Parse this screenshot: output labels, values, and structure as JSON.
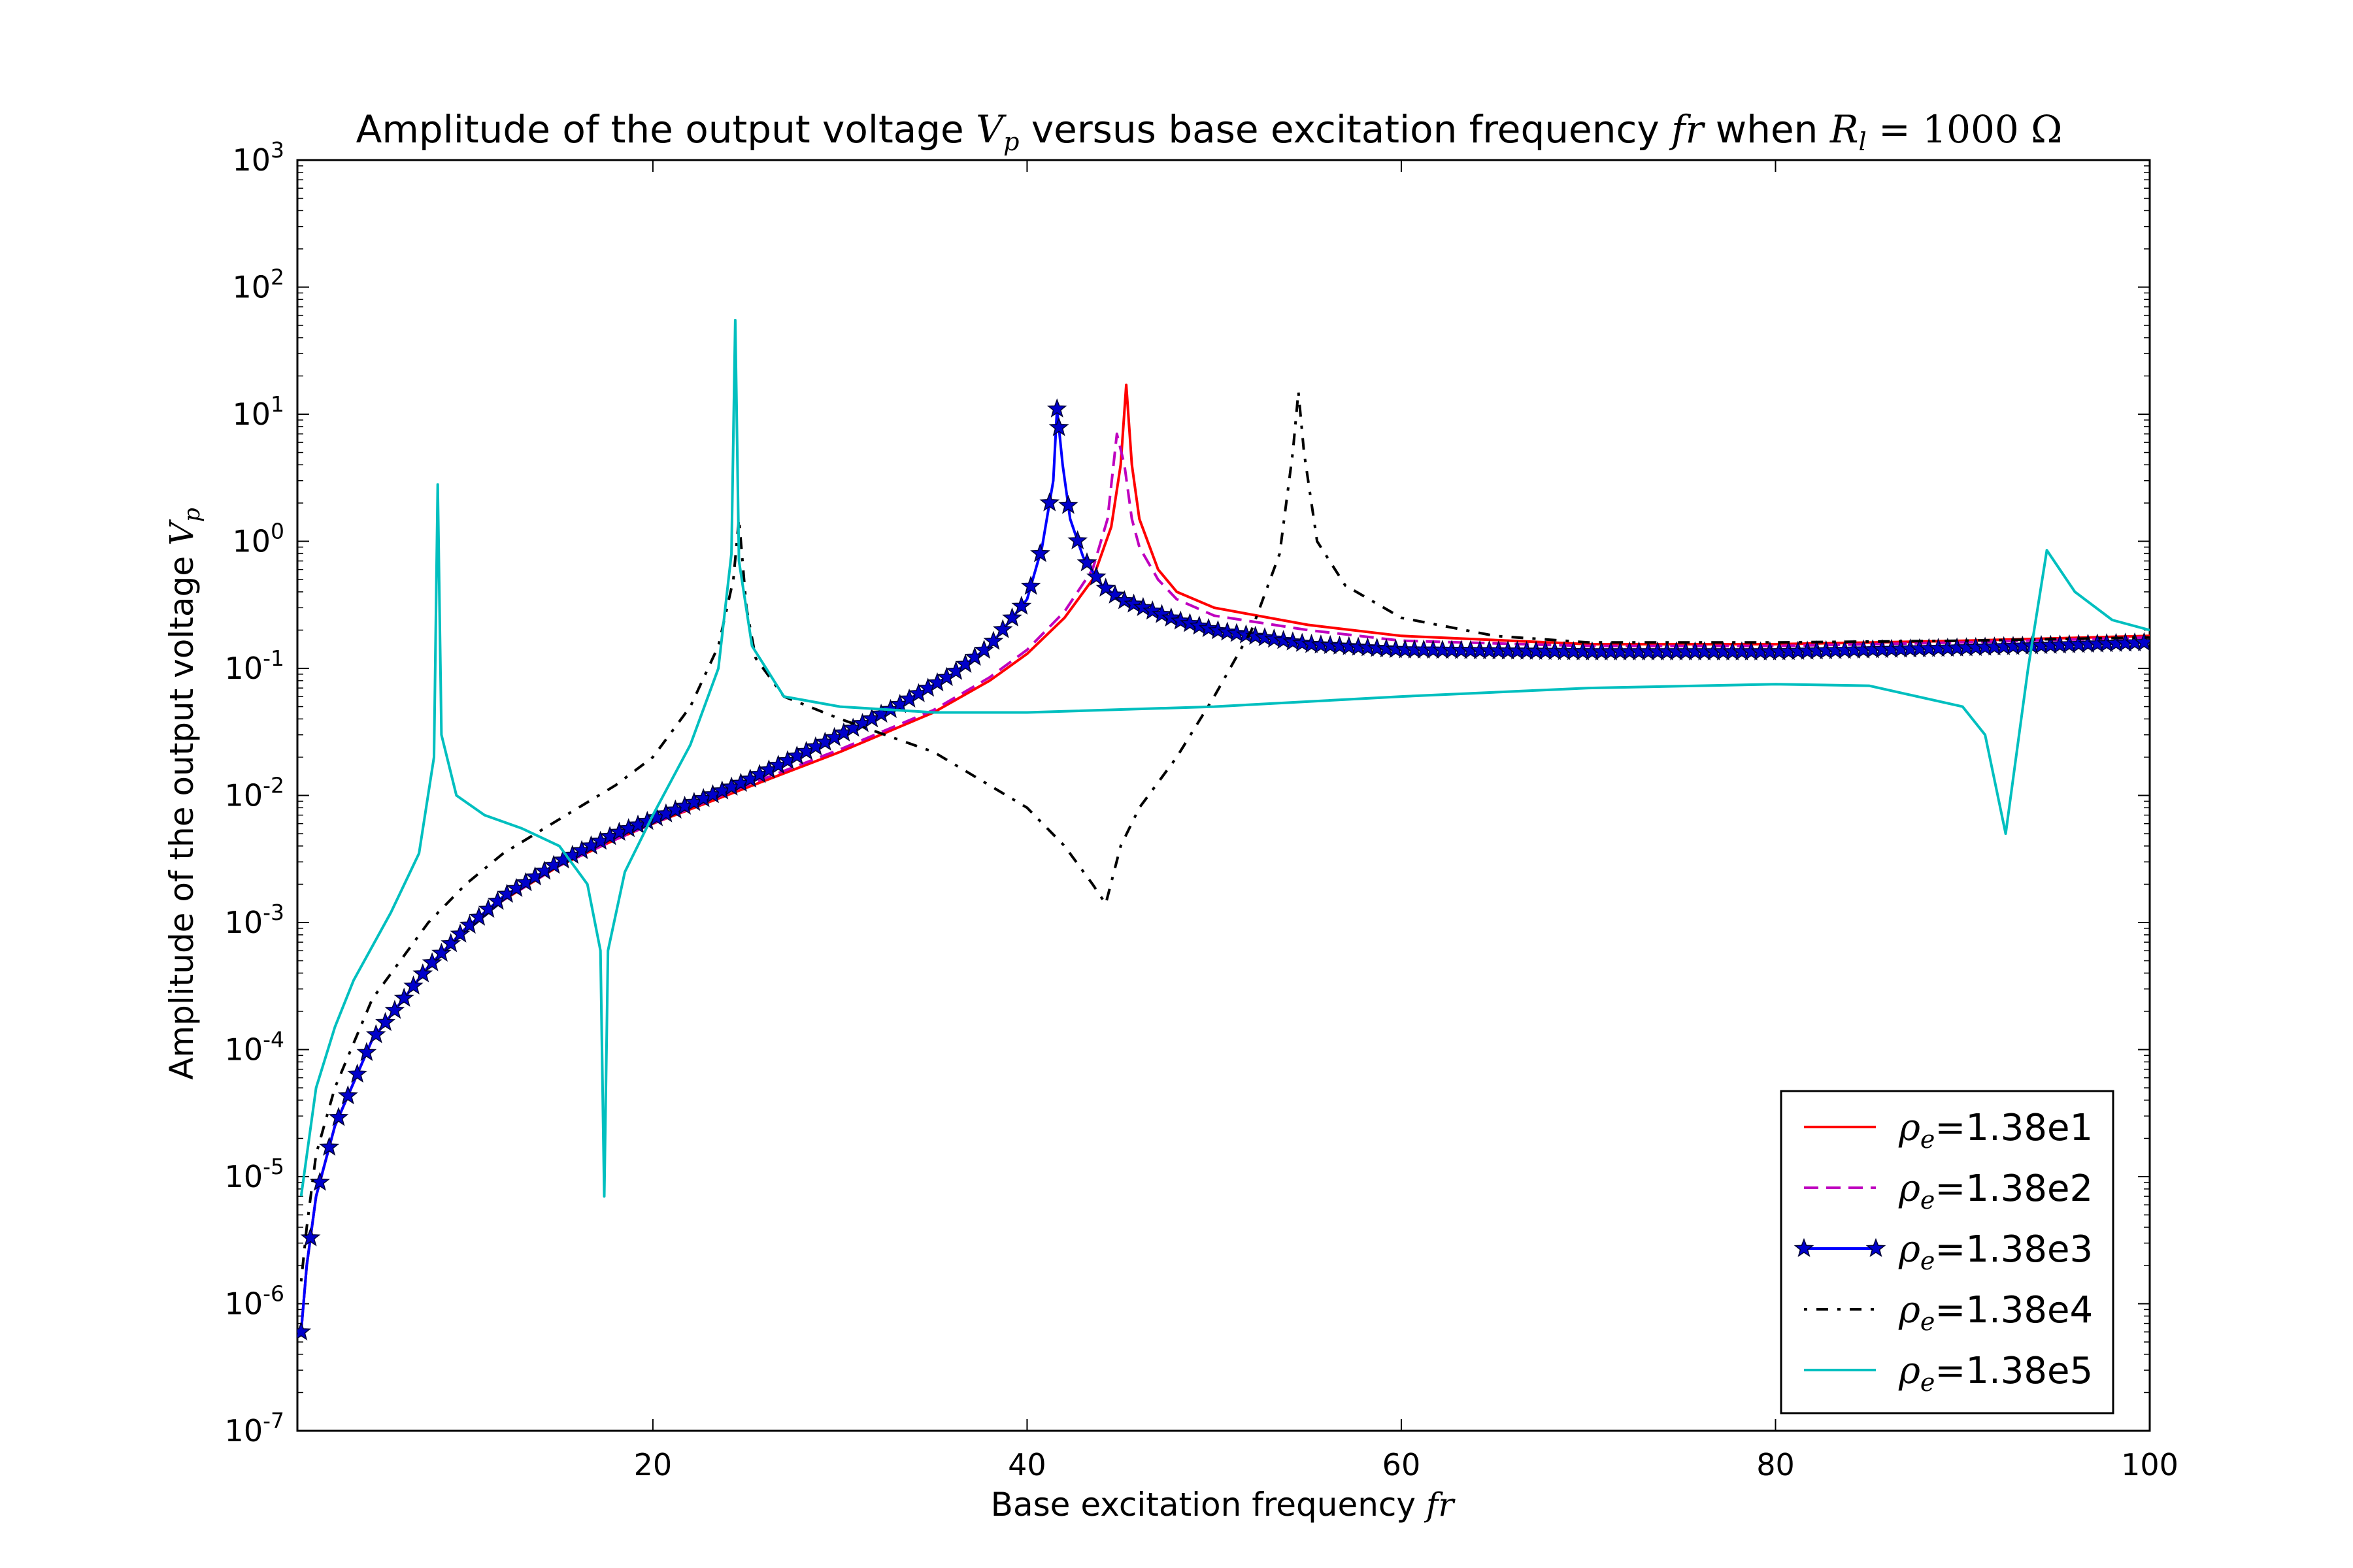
{
  "chart_data": {
    "type": "line",
    "title": "Amplitude of the output voltage V_p versus base excitation frequency fr when R_l = 1000 Ω",
    "xlabel": "Base excitation frequency fr",
    "ylabel": "Amplitude of the output voltage V_p",
    "xlim": [
      1,
      100
    ],
    "ylim": [
      1e-07,
      1000
    ],
    "yscale": "log",
    "xticks": [
      20,
      40,
      60,
      80,
      100
    ],
    "yticks": [
      "10^-7",
      "10^-6",
      "10^-5",
      "10^-4",
      "10^-3",
      "10^-2",
      "10^-1",
      "10^0",
      "10^1",
      "10^2",
      "10^3"
    ],
    "grid": false,
    "legend_position": "lower-right",
    "series": [
      {
        "name": "ρe=1.38e1",
        "color": "#ff0000",
        "style": "solid",
        "points": [
          [
            1.2,
            6e-07
          ],
          [
            1.5,
            2e-06
          ],
          [
            2,
            7e-06
          ],
          [
            3,
            2.5e-05
          ],
          [
            5,
            0.00012
          ],
          [
            8,
            0.00045
          ],
          [
            10,
            0.0009
          ],
          [
            12,
            0.0015
          ],
          [
            15,
            0.0028
          ],
          [
            18,
            0.0045
          ],
          [
            20,
            0.006
          ],
          [
            25,
            0.0115
          ],
          [
            30,
            0.022
          ],
          [
            35,
            0.045
          ],
          [
            38,
            0.08
          ],
          [
            40,
            0.13
          ],
          [
            42,
            0.25
          ],
          [
            43.5,
            0.5
          ],
          [
            44.5,
            1.3
          ],
          [
            45,
            4
          ],
          [
            45.3,
            17
          ],
          [
            45.6,
            4
          ],
          [
            46,
            1.5
          ],
          [
            47,
            0.6
          ],
          [
            48,
            0.4
          ],
          [
            50,
            0.3
          ],
          [
            55,
            0.22
          ],
          [
            60,
            0.18
          ],
          [
            70,
            0.155
          ],
          [
            80,
            0.155
          ],
          [
            90,
            0.165
          ],
          [
            100,
            0.18
          ]
        ]
      },
      {
        "name": "ρe=1.38e2",
        "color": "#bf00bf",
        "style": "dashed",
        "points": [
          [
            1.2,
            6e-07
          ],
          [
            1.5,
            2e-06
          ],
          [
            2,
            7e-06
          ],
          [
            3,
            2.5e-05
          ],
          [
            5,
            0.00012
          ],
          [
            8,
            0.00045
          ],
          [
            10,
            0.0009
          ],
          [
            12,
            0.0015
          ],
          [
            15,
            0.0028
          ],
          [
            18,
            0.0045
          ],
          [
            20,
            0.006
          ],
          [
            25,
            0.012
          ],
          [
            30,
            0.023
          ],
          [
            35,
            0.047
          ],
          [
            38,
            0.085
          ],
          [
            40,
            0.14
          ],
          [
            42,
            0.28
          ],
          [
            43.5,
            0.6
          ],
          [
            44.3,
            1.5
          ],
          [
            44.8,
            7
          ],
          [
            45.2,
            4
          ],
          [
            45.6,
            1.5
          ],
          [
            46,
            0.9
          ],
          [
            47,
            0.5
          ],
          [
            48,
            0.35
          ],
          [
            50,
            0.26
          ],
          [
            55,
            0.2
          ],
          [
            60,
            0.165
          ],
          [
            70,
            0.15
          ],
          [
            80,
            0.15
          ],
          [
            90,
            0.16
          ],
          [
            100,
            0.175
          ]
        ]
      },
      {
        "name": "ρe=1.38e3",
        "color": "#0000ff",
        "style": "solid-star",
        "points": [
          [
            1.2,
            6e-07
          ],
          [
            1.5,
            2e-06
          ],
          [
            2,
            7e-06
          ],
          [
            3,
            2.5e-05
          ],
          [
            5,
            0.00012
          ],
          [
            8,
            0.00045
          ],
          [
            10,
            0.0009
          ],
          [
            12,
            0.0016
          ],
          [
            15,
            0.003
          ],
          [
            18,
            0.005
          ],
          [
            20,
            0.0065
          ],
          [
            25,
            0.013
          ],
          [
            30,
            0.03
          ],
          [
            33,
            0.05
          ],
          [
            36,
            0.09
          ],
          [
            38,
            0.15
          ],
          [
            40,
            0.35
          ],
          [
            40.8,
            0.9
          ],
          [
            41.4,
            3
          ],
          [
            41.6,
            11
          ],
          [
            41.9,
            4
          ],
          [
            42.3,
            1.5
          ],
          [
            43,
            0.75
          ],
          [
            44,
            0.45
          ],
          [
            45,
            0.35
          ],
          [
            48,
            0.24
          ],
          [
            50,
            0.2
          ],
          [
            55,
            0.155
          ],
          [
            60,
            0.14
          ],
          [
            70,
            0.135
          ],
          [
            80,
            0.135
          ],
          [
            90,
            0.145
          ],
          [
            100,
            0.16
          ]
        ]
      },
      {
        "name": "ρe=1.38e4",
        "color": "#000000",
        "style": "dashdot",
        "points": [
          [
            1.2,
            1.5e-06
          ],
          [
            1.5,
            4e-06
          ],
          [
            2,
            1.5e-05
          ],
          [
            3,
            5e-05
          ],
          [
            5,
            0.00025
          ],
          [
            8,
            0.001
          ],
          [
            10,
            0.002
          ],
          [
            12,
            0.0035
          ],
          [
            15,
            0.0065
          ],
          [
            18,
            0.012
          ],
          [
            20,
            0.02
          ],
          [
            22,
            0.05
          ],
          [
            23.5,
            0.15
          ],
          [
            24.3,
            0.5
          ],
          [
            24.6,
            1.5
          ],
          [
            25,
            0.3
          ],
          [
            25.5,
            0.12
          ],
          [
            27,
            0.06
          ],
          [
            30,
            0.04
          ],
          [
            35,
            0.022
          ],
          [
            40,
            0.008
          ],
          [
            42,
            0.004
          ],
          [
            43.5,
            0.002
          ],
          [
            44.2,
            0.0014
          ],
          [
            45,
            0.004
          ],
          [
            46,
            0.008
          ],
          [
            48,
            0.02
          ],
          [
            50,
            0.06
          ],
          [
            52,
            0.2
          ],
          [
            53.5,
            0.8
          ],
          [
            54.2,
            5
          ],
          [
            54.5,
            15
          ],
          [
            54.8,
            5
          ],
          [
            55.5,
            1
          ],
          [
            57,
            0.45
          ],
          [
            60,
            0.25
          ],
          [
            65,
            0.18
          ],
          [
            70,
            0.16
          ],
          [
            80,
            0.16
          ],
          [
            90,
            0.165
          ],
          [
            100,
            0.175
          ]
        ]
      },
      {
        "name": "ρe=1.38e5",
        "color": "#00bfbf",
        "style": "solid",
        "points": [
          [
            1.2,
            7e-06
          ],
          [
            2,
            5e-05
          ],
          [
            3,
            0.00015
          ],
          [
            4,
            0.00035
          ],
          [
            6,
            0.0012
          ],
          [
            7.5,
            0.0035
          ],
          [
            8.3,
            0.02
          ],
          [
            8.5,
            2.8
          ],
          [
            8.7,
            0.03
          ],
          [
            9.5,
            0.01
          ],
          [
            11,
            0.007
          ],
          [
            13,
            0.0055
          ],
          [
            15,
            0.004
          ],
          [
            16.5,
            0.002
          ],
          [
            17.2,
            0.0006
          ],
          [
            17.4,
            7e-06
          ],
          [
            17.6,
            0.0006
          ],
          [
            18.5,
            0.0025
          ],
          [
            20,
            0.007
          ],
          [
            22,
            0.025
          ],
          [
            23.5,
            0.1
          ],
          [
            24.2,
            0.8
          ],
          [
            24.4,
            55
          ],
          [
            24.6,
            0.7
          ],
          [
            25.3,
            0.15
          ],
          [
            27,
            0.06
          ],
          [
            30,
            0.05
          ],
          [
            35,
            0.045
          ],
          [
            40,
            0.045
          ],
          [
            50,
            0.05
          ],
          [
            60,
            0.06
          ],
          [
            70,
            0.07
          ],
          [
            80,
            0.075
          ],
          [
            85,
            0.073
          ],
          [
            90,
            0.05
          ],
          [
            91.2,
            0.03
          ],
          [
            92.3,
            0.005
          ],
          [
            93.5,
            0.1
          ],
          [
            94.5,
            0.85
          ],
          [
            96,
            0.4
          ],
          [
            98,
            0.24
          ],
          [
            100,
            0.2
          ]
        ]
      }
    ]
  }
}
